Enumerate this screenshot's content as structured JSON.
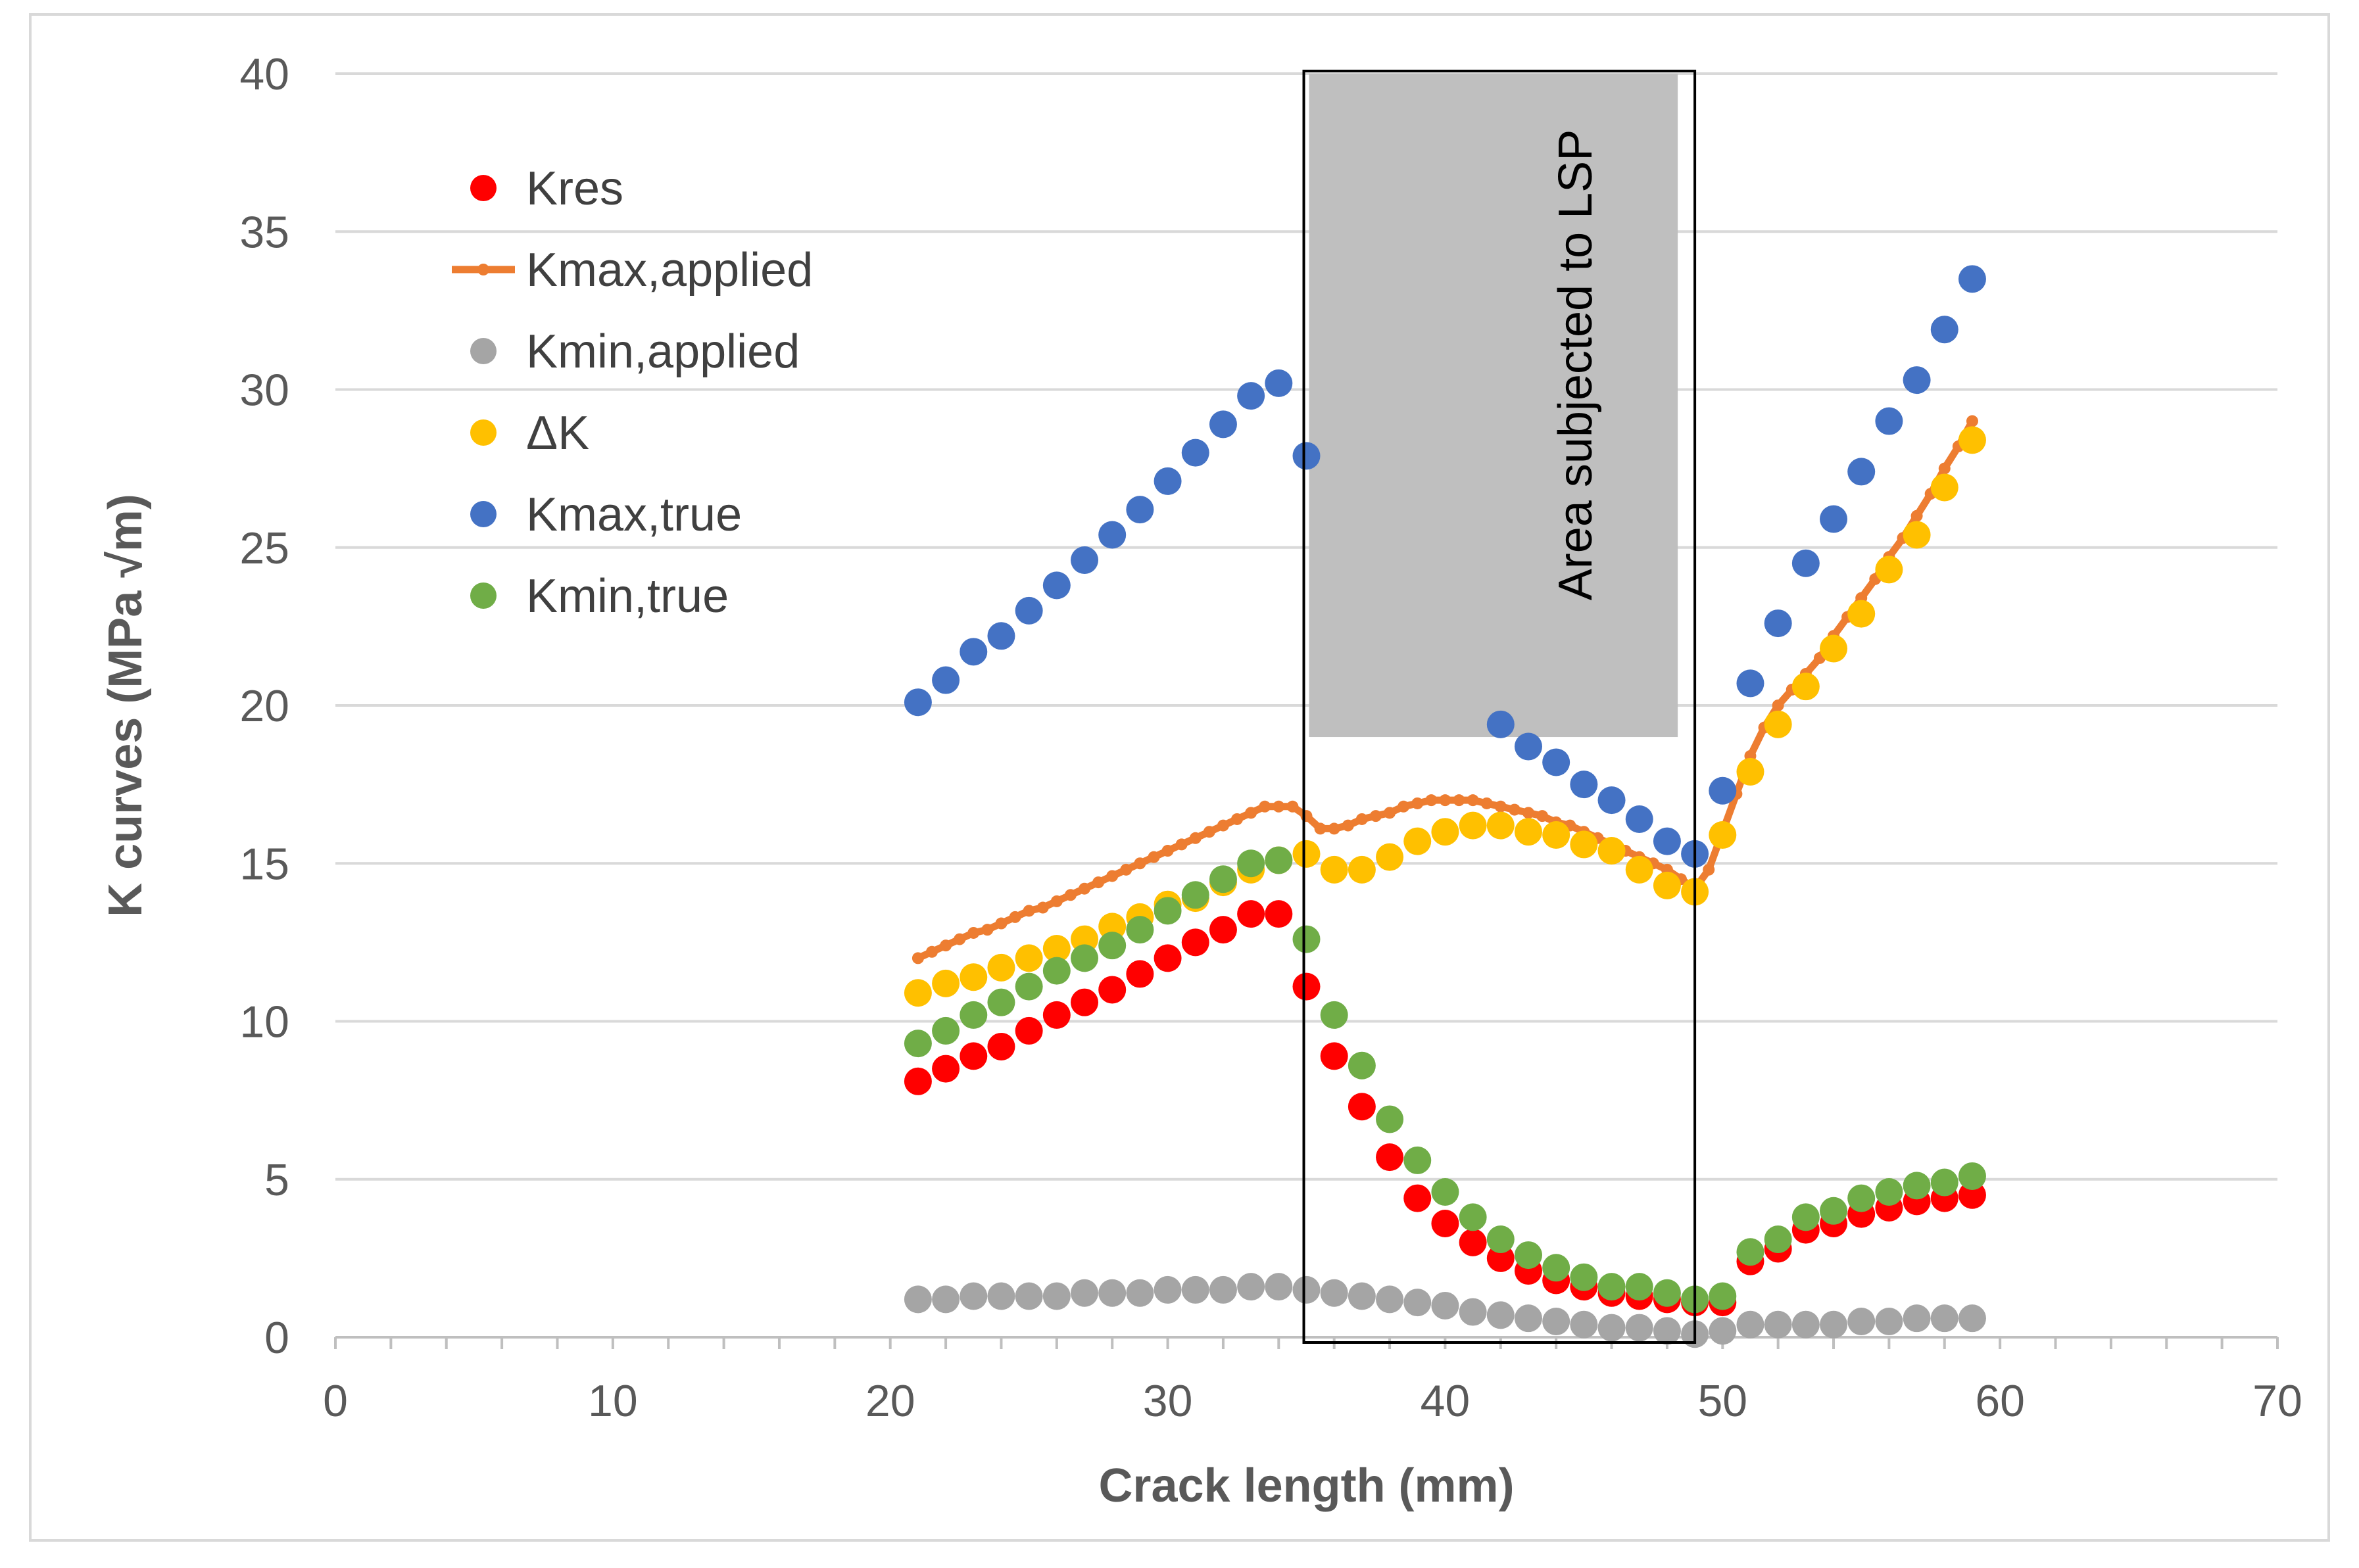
{
  "chart_data": {
    "type": "scatter",
    "title": "",
    "xlabel": "Crack length (mm)",
    "ylabel": "K curves (MPa √m)",
    "xlim": [
      0,
      70
    ],
    "ylim": [
      0,
      40
    ],
    "x_ticks": [
      0,
      10,
      20,
      30,
      40,
      50,
      60,
      70
    ],
    "y_ticks": [
      0,
      5,
      10,
      15,
      20,
      25,
      30,
      35,
      40
    ],
    "grid": "horizontal",
    "legend_position": "top-left",
    "annotation": {
      "text": "Area  subjected to LSP",
      "x_range": [
        35,
        49
      ],
      "shaded_y_range": [
        19,
        40
      ],
      "shade_color": "#bfbfbf"
    },
    "series": [
      {
        "name": "Kres",
        "style": "markers",
        "color": "#ff0000",
        "x": [
          21,
          22,
          23,
          24,
          25,
          26,
          27,
          28,
          29,
          30,
          31,
          32,
          33,
          34,
          35,
          36,
          37,
          38,
          39,
          40,
          41,
          42,
          43,
          44,
          45,
          46,
          47,
          48,
          49,
          50,
          51,
          52,
          53,
          54,
          55,
          56,
          57,
          58,
          59
        ],
        "y": [
          8.1,
          8.5,
          8.9,
          9.2,
          9.7,
          10.2,
          10.6,
          11.0,
          11.5,
          12.0,
          12.5,
          12.9,
          13.4,
          13.4,
          11.1,
          8.9,
          7.3,
          5.7,
          4.4,
          3.6,
          3.0,
          2.5,
          2.1,
          1.8,
          1.6,
          1.4,
          1.3,
          1.2,
          1.1,
          1.1,
          2.4,
          2.8,
          3.4,
          3.6,
          3.9,
          4.1,
          4.3,
          4.4,
          4.5
        ]
      },
      {
        "name": "Kmax,applied",
        "style": "line-markers",
        "color": "#ed7d31",
        "x": [
          21,
          21.5,
          22,
          22.5,
          23,
          23.5,
          24,
          24.5,
          25,
          25.5,
          26,
          26.5,
          27,
          27.5,
          28,
          28.5,
          29,
          29.5,
          30,
          30.5,
          31,
          31.5,
          32,
          32.5,
          33,
          33.5,
          34,
          34.5,
          35,
          35.5,
          36,
          36.5,
          37,
          37.5,
          38,
          38.5,
          39,
          39.5,
          40,
          40.5,
          41,
          41.5,
          42,
          42.5,
          43,
          43.5,
          44,
          44.5,
          45,
          45.5,
          46,
          46.5,
          47,
          47.5,
          48,
          48.5,
          49,
          49.5,
          50,
          50.5,
          51,
          51.5,
          52,
          52.5,
          53,
          53.5,
          54,
          54.5,
          55,
          55.5,
          56,
          56.5,
          57,
          57.5,
          58,
          58.5,
          59
        ],
        "y": [
          12.0,
          12.2,
          12.4,
          12.6,
          12.8,
          12.9,
          13.1,
          13.3,
          13.5,
          13.6,
          13.8,
          14.0,
          14.2,
          14.4,
          14.6,
          14.8,
          15.0,
          15.2,
          15.4,
          15.6,
          15.8,
          16.0,
          16.2,
          16.4,
          16.6,
          16.8,
          16.8,
          16.8,
          16.5,
          16.1,
          16.1,
          16.2,
          16.4,
          16.5,
          16.6,
          16.8,
          16.9,
          17.0,
          17.0,
          17.0,
          17.0,
          16.9,
          16.8,
          16.7,
          16.6,
          16.5,
          16.3,
          16.2,
          16.0,
          15.8,
          15.6,
          15.4,
          15.2,
          15.0,
          14.8,
          14.5,
          14.2,
          14.8,
          16.0,
          17.2,
          18.4,
          19.3,
          20.0,
          20.5,
          21.0,
          21.5,
          22.2,
          22.8,
          23.4,
          24.0,
          24.7,
          25.3,
          26.0,
          26.7,
          27.5,
          28.2,
          29.0
        ]
      },
      {
        "name": "Kmin,applied",
        "style": "markers",
        "color": "#a5a5a5",
        "x": [
          21,
          22,
          23,
          24,
          25,
          26,
          27,
          28,
          29,
          30,
          31,
          32,
          33,
          34,
          35,
          36,
          37,
          38,
          39,
          40,
          41,
          42,
          43,
          44,
          45,
          46,
          47,
          48,
          49,
          50,
          51,
          52,
          53,
          54,
          55,
          56,
          57,
          58,
          59
        ],
        "y": [
          1.2,
          1.2,
          1.3,
          1.3,
          1.3,
          1.3,
          1.4,
          1.4,
          1.4,
          1.5,
          1.5,
          1.5,
          1.6,
          1.6,
          1.5,
          1.4,
          1.3,
          1.2,
          1.1,
          1.0,
          0.8,
          0.7,
          0.6,
          0.5,
          0.4,
          0.3,
          0.3,
          0.2,
          0.1,
          0.2,
          0.4,
          0.4,
          0.4,
          0.4,
          0.5,
          0.5,
          0.6,
          0.6,
          0.6
        ]
      },
      {
        "name": "ΔK",
        "style": "markers",
        "color": "#ffc000",
        "x": [
          21,
          22,
          23,
          24,
          25,
          26,
          27,
          28,
          29,
          30,
          31,
          32,
          33,
          34,
          35,
          36,
          37,
          38,
          39,
          40,
          41,
          42,
          43,
          44,
          45,
          46,
          47,
          48,
          49,
          50,
          51,
          52,
          53,
          54,
          55,
          56,
          57,
          58,
          59
        ],
        "y": [
          10.9,
          11.2,
          11.4,
          11.7,
          12.0,
          12.3,
          12.6,
          13.0,
          13.3,
          13.7,
          13.9,
          14.4,
          14.8,
          15.1,
          15.3,
          14.8,
          14.8,
          15.2,
          15.7,
          16.0,
          16.2,
          16.2,
          16.0,
          15.9,
          15.6,
          15.4,
          14.8,
          14.3,
          14.1,
          15.9,
          17.9,
          19.4,
          20.6,
          21.8,
          22.9,
          24.3,
          25.4,
          26.9,
          28.4
        ]
      },
      {
        "name": "Kmax,true",
        "style": "markers",
        "color": "#4472c4",
        "x": [
          21,
          22,
          23,
          24,
          25,
          26,
          27,
          28,
          29,
          30,
          31,
          32,
          33,
          34,
          35,
          42,
          43,
          44,
          45,
          46,
          47,
          48,
          49,
          50,
          51,
          52,
          53,
          54,
          55,
          56,
          57,
          58,
          59
        ],
        "y": [
          20.1,
          20.8,
          21.7,
          22.2,
          23.0,
          23.8,
          24.6,
          25.4,
          26.2,
          27.1,
          28.0,
          28.9,
          29.8,
          30.2,
          27.9,
          19.4,
          18.7,
          18.2,
          17.5,
          17.0,
          16.4,
          15.7,
          15.3,
          17.3,
          20.7,
          22.6,
          24.5,
          25.9,
          27.4,
          29.0,
          30.3,
          31.9,
          33.5
        ]
      },
      {
        "name": "Kmin,true",
        "style": "markers",
        "color": "#70ad47",
        "x": [
          21,
          22,
          23,
          24,
          25,
          26,
          27,
          28,
          29,
          30,
          31,
          32,
          33,
          34,
          35,
          36,
          37,
          38,
          39,
          40,
          41,
          42,
          43,
          44,
          45,
          46,
          47,
          48,
          49,
          50,
          51,
          52,
          53,
          54,
          55,
          56,
          57,
          58,
          59
        ],
        "y": [
          9.3,
          9.7,
          10.2,
          10.6,
          11.1,
          11.6,
          12.0,
          12.4,
          12.9,
          13.5,
          14.0,
          14.5,
          15.0,
          15.1,
          12.6,
          10.2,
          8.6,
          6.9,
          5.6,
          4.6,
          3.8,
          3.1,
          2.6,
          2.2,
          1.9,
          1.6,
          1.6,
          1.4,
          1.2,
          1.3,
          2.7,
          3.1,
          3.8,
          4.0,
          4.4,
          4.6,
          4.8,
          4.9,
          5.1
        ]
      }
    ]
  }
}
